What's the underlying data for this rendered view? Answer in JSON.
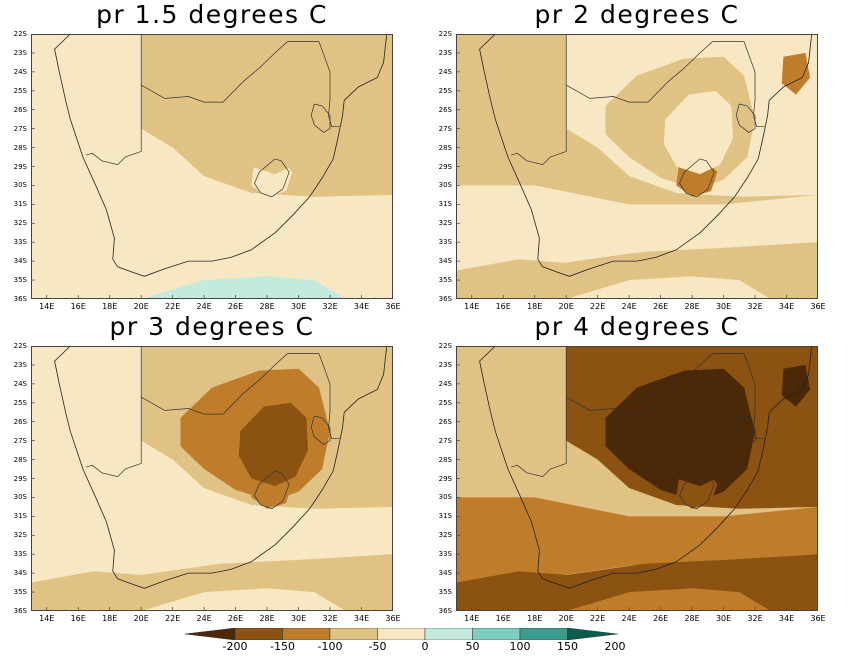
{
  "panels": [
    {
      "title": "pr 1.5 degrees C",
      "zone_levels": [
        4,
        4,
        3,
        3,
        4,
        5,
        4,
        3,
        3
      ]
    },
    {
      "title": "pr 2 degrees C",
      "zone_levels": [
        3,
        4,
        4,
        3,
        3,
        4,
        2,
        4,
        2
      ]
    },
    {
      "title": "pr 3 degrees C",
      "zone_levels": [
        4,
        4,
        3,
        2,
        3,
        4,
        2,
        1,
        3
      ]
    },
    {
      "title": "pr 4 degrees C",
      "zone_levels": [
        3,
        2,
        1,
        0,
        1,
        2,
        1,
        0,
        0
      ]
    }
  ],
  "lat_labels": [
    "22S",
    "23S",
    "24S",
    "25S",
    "26S",
    "27S",
    "28S",
    "29S",
    "30S",
    "31S",
    "32S",
    "33S",
    "34S",
    "35S",
    "36S"
  ],
  "lon_labels": [
    "14E",
    "16E",
    "18E",
    "20E",
    "22E",
    "24E",
    "26E",
    "28E",
    "30E",
    "32E",
    "34E",
    "36E"
  ],
  "colorbar": {
    "labels": [
      "-200",
      "-150",
      "-100",
      "-50",
      "0",
      "50",
      "100",
      "150",
      "200"
    ],
    "colors": [
      "#4a2808",
      "#8c5212",
      "#bf7d2b",
      "#dfc284",
      "#f7e7c2",
      "#c4e9df",
      "#7ecdc0",
      "#3b9c8e",
      "#0b5e4f"
    ]
  }
}
